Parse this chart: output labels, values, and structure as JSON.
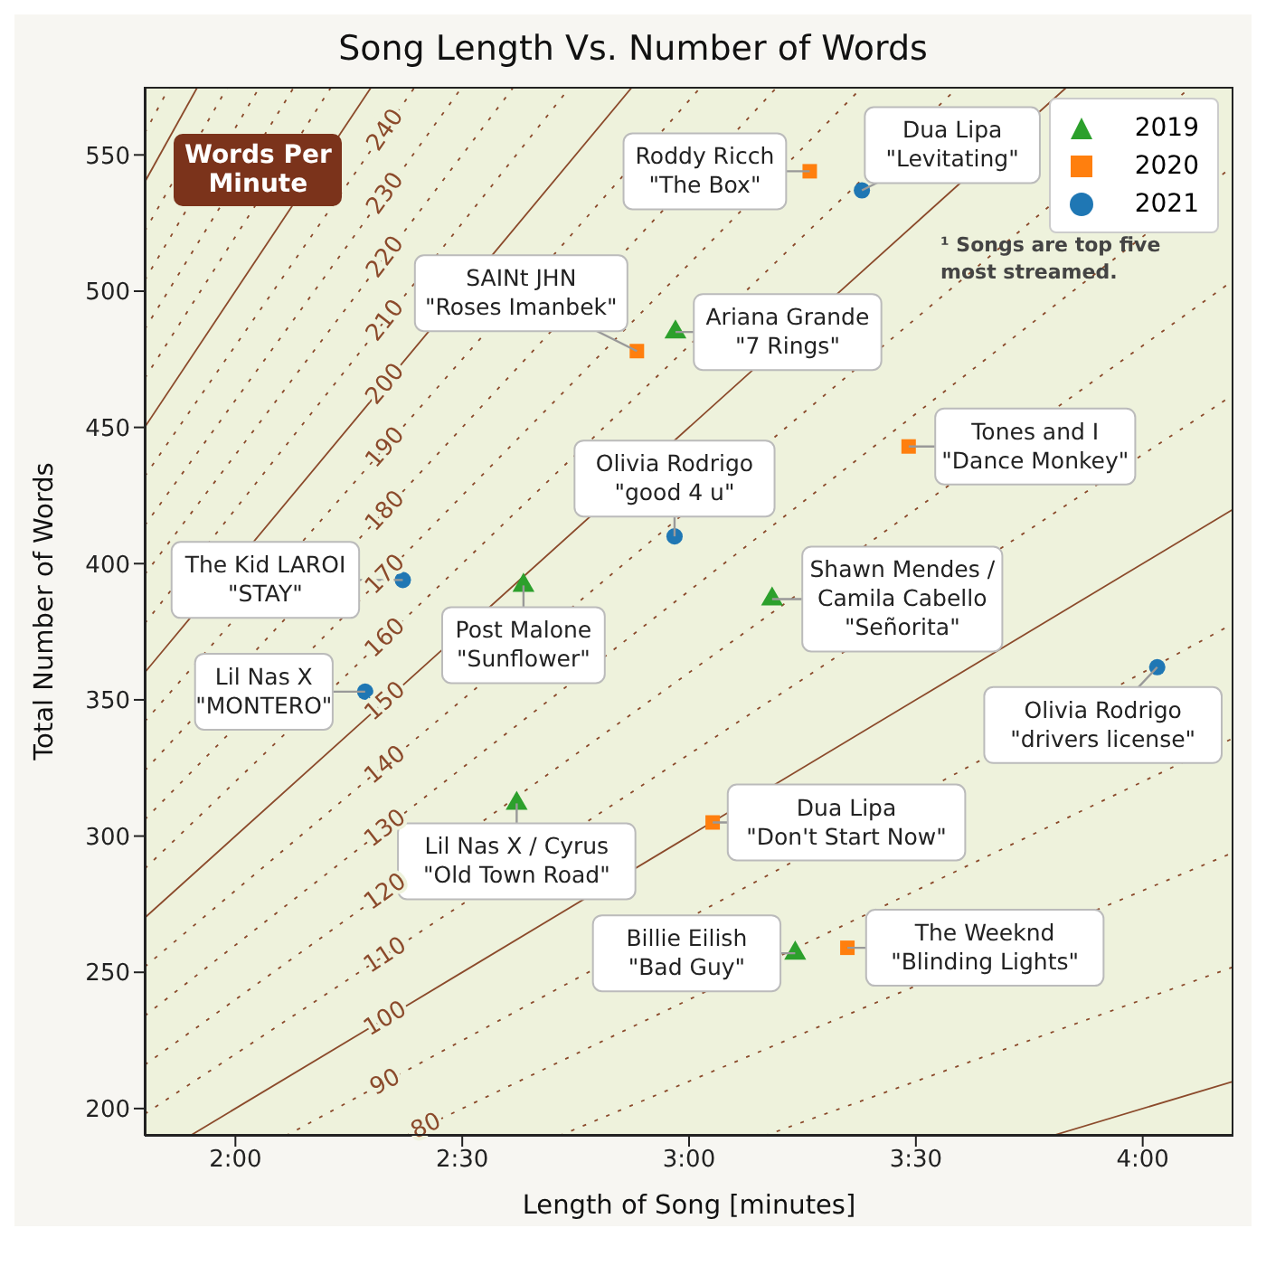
{
  "chart_data": {
    "type": "scatter",
    "title": "Song Length Vs. Number of Words",
    "xlabel": "Length of Song [minutes]",
    "ylabel": "Total Number of Words",
    "xlim": [
      1.8,
      4.2
    ],
    "ylim": [
      190,
      575
    ],
    "xticks": [
      {
        "value": 2,
        "label": "2:00"
      },
      {
        "value": 2.5,
        "label": "2:30"
      },
      {
        "value": 3,
        "label": "3:00"
      },
      {
        "value": 3.5,
        "label": "3:30"
      },
      {
        "value": 4,
        "label": "4:00"
      }
    ],
    "yticks": [
      200,
      250,
      300,
      350,
      400,
      450,
      500,
      550
    ],
    "legend": "top right",
    "series": [
      {
        "type": "line",
        "color": "#8b4a2b",
        "line_style": "solid",
        "marker": "none",
        "x": [
          3.8,
          4.2
        ],
        "values": [
          190,
          210
        ]
      },
      {
        "type": "line",
        "color": "#8b4a2b",
        "line_style": "dotted",
        "marker": "none",
        "x": [
          3.1667,
          4.2
        ],
        "values": [
          190,
          252
        ]
      },
      {
        "type": "line",
        "color": "#8b4a2b",
        "line_style": "dotted",
        "marker": "none",
        "x": [
          2.7143,
          4.2
        ],
        "values": [
          190,
          294
        ]
      },
      {
        "type": "line",
        "name": "80",
        "color": "#8b4a2b",
        "line_style": "dotted",
        "marker": "none",
        "x": [
          2.375,
          2.42,
          4.2
        ],
        "values": [
          190,
          193.6,
          336
        ]
      },
      {
        "type": "line",
        "name": "90",
        "color": "#8b4a2b",
        "line_style": "dotted",
        "marker": "none",
        "x": [
          2.1111,
          2.33,
          4.2
        ],
        "values": [
          190,
          209.7,
          378
        ]
      },
      {
        "type": "line",
        "name": "100",
        "color": "#8b4a2b",
        "line_style": "solid",
        "marker": "none",
        "x": [
          1.9,
          2.33,
          4.2
        ],
        "values": [
          190,
          233,
          420
        ]
      },
      {
        "type": "line",
        "name": "110",
        "color": "#8b4a2b",
        "line_style": "dotted",
        "marker": "none",
        "x": [
          1.8,
          2.33,
          4.2
        ],
        "values": [
          198,
          256.3,
          462
        ]
      },
      {
        "type": "line",
        "name": "120",
        "color": "#8b4a2b",
        "line_style": "dotted",
        "marker": "none",
        "x": [
          1.8,
          2.33,
          4.2
        ],
        "values": [
          216,
          279.6,
          504
        ]
      },
      {
        "type": "line",
        "name": "130",
        "color": "#8b4a2b",
        "line_style": "dotted",
        "marker": "none",
        "x": [
          1.8,
          2.33,
          4.2
        ],
        "values": [
          234,
          302.9,
          546
        ]
      },
      {
        "type": "line",
        "name": "140",
        "color": "#8b4a2b",
        "line_style": "dotted",
        "marker": "none",
        "x": [
          1.8,
          2.33,
          4.1071
        ],
        "values": [
          252,
          326.2,
          575
        ]
      },
      {
        "type": "line",
        "name": "150",
        "color": "#8b4a2b",
        "line_style": "solid",
        "marker": "none",
        "x": [
          1.8,
          2.33,
          3.8333
        ],
        "values": [
          270,
          349.5,
          575
        ]
      },
      {
        "type": "line",
        "name": "160",
        "color": "#8b4a2b",
        "line_style": "dotted",
        "marker": "none",
        "x": [
          1.8,
          2.33,
          3.5938
        ],
        "values": [
          288,
          372.8,
          575
        ]
      },
      {
        "type": "line",
        "name": "170",
        "color": "#8b4a2b",
        "line_style": "dotted",
        "marker": "none",
        "x": [
          1.8,
          2.33,
          3.3824
        ],
        "values": [
          306,
          396.1,
          575
        ]
      },
      {
        "type": "line",
        "name": "180",
        "color": "#8b4a2b",
        "line_style": "dotted",
        "marker": "none",
        "x": [
          1.8,
          2.33,
          3.1944
        ],
        "values": [
          324,
          419.4,
          575
        ]
      },
      {
        "type": "line",
        "name": "190",
        "color": "#8b4a2b",
        "line_style": "dotted",
        "marker": "none",
        "x": [
          1.8,
          2.33,
          3.0263
        ],
        "values": [
          342,
          442.7,
          575
        ]
      },
      {
        "type": "line",
        "name": "200",
        "color": "#8b4a2b",
        "line_style": "solid",
        "marker": "none",
        "x": [
          1.8,
          2.33,
          2.875
        ],
        "values": [
          360,
          466,
          575
        ]
      },
      {
        "type": "line",
        "name": "210",
        "color": "#8b4a2b",
        "line_style": "dotted",
        "marker": "none",
        "x": [
          1.8,
          2.33,
          2.7381
        ],
        "values": [
          378,
          489.3,
          575
        ]
      },
      {
        "type": "line",
        "name": "220",
        "color": "#8b4a2b",
        "line_style": "dotted",
        "marker": "none",
        "x": [
          1.8,
          2.33,
          2.6136
        ],
        "values": [
          396,
          512.6,
          575
        ]
      },
      {
        "type": "line",
        "name": "230",
        "color": "#8b4a2b",
        "line_style": "dotted",
        "marker": "none",
        "x": [
          1.8,
          2.33,
          2.5
        ],
        "values": [
          414,
          535.9,
          575
        ]
      },
      {
        "type": "line",
        "name": "240",
        "color": "#8b4a2b",
        "line_style": "dotted",
        "marker": "none",
        "x": [
          1.8,
          2.33,
          2.3958
        ],
        "values": [
          432,
          559.2,
          575
        ]
      },
      {
        "type": "line",
        "color": "#8b4a2b",
        "line_style": "solid",
        "marker": "none",
        "x": [
          1.8,
          2.3
        ],
        "values": [
          450,
          575
        ]
      },
      {
        "type": "line",
        "color": "#8b4a2b",
        "line_style": "dotted",
        "marker": "none",
        "x": [
          1.8,
          2.2115
        ],
        "values": [
          468,
          575
        ]
      },
      {
        "type": "line",
        "color": "#8b4a2b",
        "line_style": "dotted",
        "marker": "none",
        "x": [
          1.8,
          2.1296
        ],
        "values": [
          486,
          575
        ]
      },
      {
        "type": "line",
        "color": "#8b4a2b",
        "line_style": "dotted",
        "marker": "none",
        "x": [
          1.8,
          2.0536
        ],
        "values": [
          504,
          575
        ]
      },
      {
        "type": "line",
        "color": "#8b4a2b",
        "line_style": "dotted",
        "marker": "none",
        "x": [
          1.8,
          1.9828
        ],
        "values": [
          522,
          575
        ]
      },
      {
        "type": "line",
        "color": "#8b4a2b",
        "line_style": "solid",
        "marker": "none",
        "x": [
          1.8,
          1.9167
        ],
        "values": [
          540,
          575
        ]
      },
      {
        "type": "line",
        "color": "#8b4a2b",
        "line_style": "dotted",
        "marker": "none",
        "x": [
          1.8,
          1.8548
        ],
        "values": [
          558,
          575
        ]
      },
      {
        "name": "2019",
        "color": "#2ca02c",
        "marker": "triangle",
        "x": [
          2.97,
          2.635,
          3.183,
          2.62,
          3.234
        ],
        "values": [
          485,
          392,
          387,
          312,
          257
        ]
      },
      {
        "name": "2020",
        "color": "#ff7f0e",
        "marker": "square",
        "x": [
          3.266,
          2.885,
          3.484,
          3.052,
          3.349
        ],
        "values": [
          544,
          478,
          443,
          305,
          259
        ]
      },
      {
        "name": "2021",
        "color": "#1f77b4",
        "marker": "circle",
        "x": [
          3.381,
          2.968,
          2.369,
          2.286,
          4.032
        ],
        "values": [
          537,
          410,
          394,
          353,
          362
        ]
      }
    ],
    "annotations": [
      {
        "text": "Ariana Grande\n\"7 Rings\"",
        "x": 2.97,
        "y": 485
      },
      {
        "text": "Post Malone\n\"Sunflower\"",
        "x": 2.635,
        "y": 392
      },
      {
        "text": "Shawn Mendes /\nCamila Cabello\n\"Señorita\"",
        "x": 3.183,
        "y": 387
      },
      {
        "text": "Lil Nas X / Cyrus\n\"Old Town Road\"",
        "x": 2.62,
        "y": 312
      },
      {
        "text": "Billie Eilish\n\"Bad Guy\"",
        "x": 3.234,
        "y": 257
      },
      {
        "text": "Roddy Ricch\n\"The Box\"",
        "x": 3.266,
        "y": 544
      },
      {
        "text": "SAINt JHN\n\"Roses Imanbek\"",
        "x": 2.885,
        "y": 478
      },
      {
        "text": "Tones and I\n\"Dance Monkey\"",
        "x": 3.484,
        "y": 443
      },
      {
        "text": "Dua Lipa\n\"Don't Start Now\"",
        "x": 3.052,
        "y": 305
      },
      {
        "text": "The Weeknd\n\"Blinding Lights\"",
        "x": 3.349,
        "y": 259
      },
      {
        "text": "Dua Lipa\n\"Levitating\"",
        "x": 3.381,
        "y": 537
      },
      {
        "text": "Olivia Rodrigo\n\"good 4 u\"",
        "x": 2.968,
        "y": 410
      },
      {
        "text": "The Kid LAROI\n\"STAY\"",
        "x": 2.369,
        "y": 394
      },
      {
        "text": "Lil Nas X\n\"MONTERO\"",
        "x": 2.286,
        "y": 353
      },
      {
        "text": "Olivia Rodrigo\n\"drivers license\"",
        "x": 4.032,
        "y": 362
      },
      "Words Per\nMinute",
      "¹ Songs are top five\nmost streamed."
    ]
  }
}
